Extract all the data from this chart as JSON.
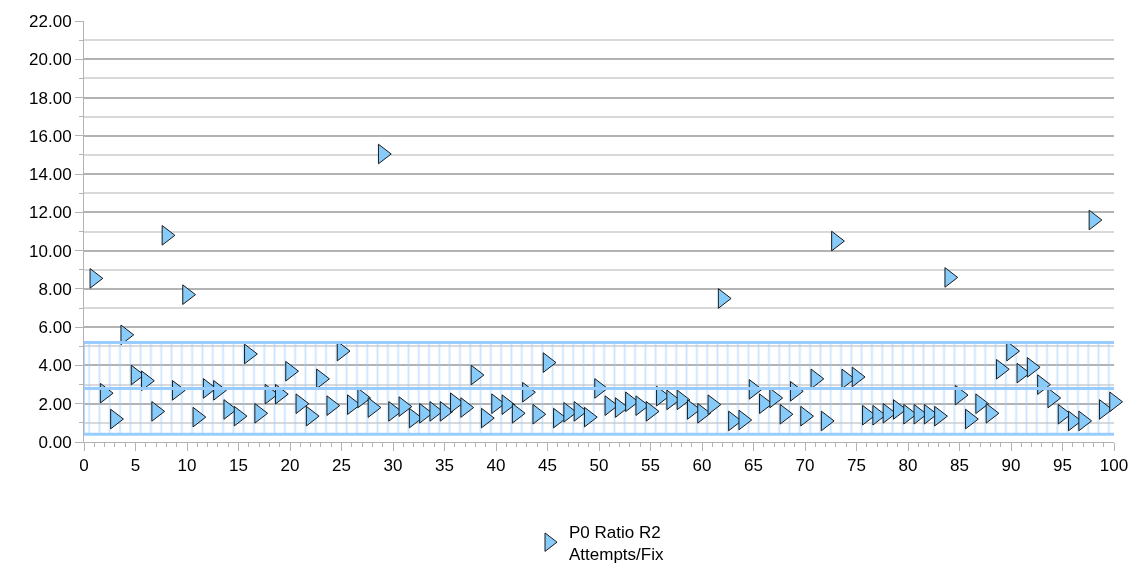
{
  "chart_data": {
    "type": "scatter",
    "marker": "triangle-right",
    "legend": "bottom",
    "grid": "y",
    "x": [
      1,
      2,
      3,
      4,
      5,
      6,
      7,
      8,
      9,
      10,
      11,
      12,
      13,
      14,
      15,
      16,
      17,
      18,
      19,
      20,
      21,
      22,
      23,
      24,
      25,
      26,
      27,
      28,
      29,
      30,
      31,
      32,
      33,
      34,
      35,
      36,
      37,
      38,
      39,
      40,
      41,
      42,
      43,
      44,
      45,
      46,
      47,
      48,
      49,
      50,
      51,
      52,
      53,
      54,
      55,
      56,
      57,
      58,
      59,
      60,
      61,
      62,
      63,
      64,
      65,
      66,
      67,
      68,
      69,
      70,
      71,
      72,
      73,
      74,
      75,
      76,
      77,
      78,
      79,
      80,
      81,
      82,
      83,
      84,
      85,
      86,
      87,
      88,
      89,
      90,
      91,
      92,
      93,
      94,
      95,
      96,
      97,
      98,
      99,
      100
    ],
    "series": [
      {
        "name": "P0 Ratio R2\nAttempts/Fix",
        "color": "#87cbfa",
        "values": [
          8.55,
          2.55,
          1.2,
          5.6,
          3.5,
          3.2,
          1.6,
          10.8,
          2.7,
          7.7,
          1.3,
          2.8,
          2.7,
          1.7,
          1.35,
          4.6,
          1.5,
          2.5,
          2.5,
          3.7,
          2.0,
          1.35,
          3.3,
          1.9,
          4.75,
          1.95,
          2.3,
          1.8,
          15.05,
          1.6,
          1.85,
          1.25,
          1.5,
          1.6,
          1.6,
          2.05,
          1.8,
          3.5,
          1.25,
          2.0,
          1.95,
          1.5,
          2.6,
          1.45,
          4.15,
          1.25,
          1.55,
          1.6,
          1.3,
          2.8,
          1.9,
          1.8,
          2.1,
          1.9,
          1.6,
          2.4,
          2.2,
          2.2,
          1.7,
          1.5,
          1.95,
          7.5,
          1.1,
          1.15,
          2.75,
          2.0,
          2.3,
          1.45,
          2.65,
          1.35,
          3.3,
          1.1,
          10.5,
          3.3,
          3.4,
          1.4,
          1.4,
          1.5,
          1.7,
          1.45,
          1.45,
          1.45,
          1.35,
          8.6,
          2.45,
          1.2,
          2.0,
          1.5,
          3.8,
          4.75,
          3.6,
          3.9,
          3.0,
          2.3,
          1.45,
          1.1,
          1.1,
          11.6,
          1.7,
          2.1
        ]
      }
    ],
    "xlim": [
      0,
      100
    ],
    "xticks": [
      0,
      5,
      10,
      15,
      20,
      25,
      30,
      35,
      40,
      45,
      50,
      55,
      60,
      65,
      70,
      75,
      80,
      85,
      90,
      95,
      100
    ],
    "ylim": [
      0,
      22
    ],
    "yticks": [
      {
        "value": 0,
        "label": "0.00"
      },
      {
        "value": 2,
        "label": "2.00"
      },
      {
        "value": 4,
        "label": "4.00"
      },
      {
        "value": 6,
        "label": "6.00"
      },
      {
        "value": 8,
        "label": "8.00"
      },
      {
        "value": 10,
        "label": "10.00"
      },
      {
        "value": 12,
        "label": "12.00"
      },
      {
        "value": 14,
        "label": "14.00"
      },
      {
        "value": 16,
        "label": "16.00"
      },
      {
        "value": 18,
        "label": "18.00"
      },
      {
        "value": 20,
        "label": "20.00"
      },
      {
        "value": 22,
        "label": "22.00"
      }
    ],
    "bands": [
      {
        "axis": "y",
        "from": 0.4,
        "to": 5.2,
        "color": "#99ccff"
      }
    ],
    "ref_lines": [
      {
        "axis": "y",
        "value": 0.4,
        "color": "#99ccff"
      },
      {
        "axis": "y",
        "value": 2.8,
        "color": "#99ccff"
      },
      {
        "axis": "y",
        "value": 5.2,
        "color": "#99ccff"
      }
    ]
  }
}
